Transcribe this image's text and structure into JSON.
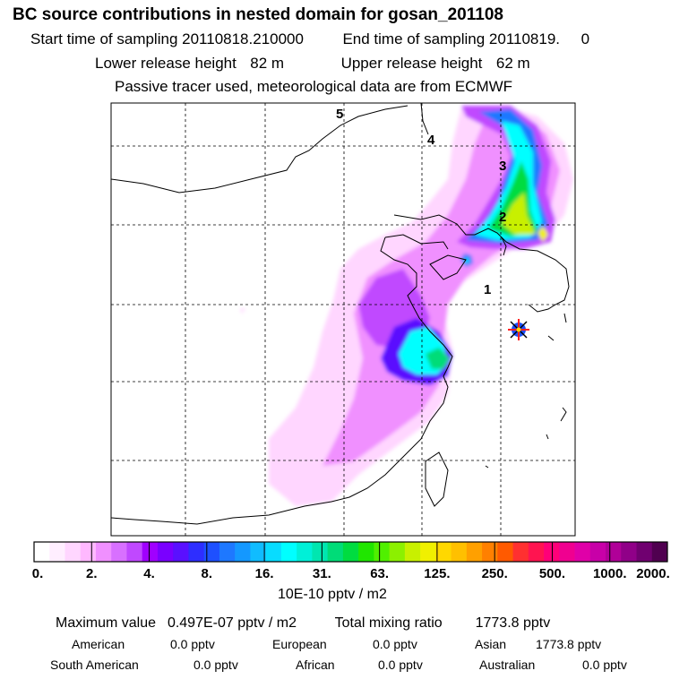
{
  "header": {
    "title": "BC  source contributions in nested domain for gosan_201108",
    "start_label": "Start time of sampling",
    "start_value": "20110818.210000",
    "end_label": "End time of sampling",
    "end_value": "20110819.     0",
    "lower_label": "Lower release height",
    "lower_value": "82 m",
    "upper_label": "Upper release height",
    "upper_value": "62 m",
    "tracer_note": "Passive tracer used, meteorological data are from ECMWF"
  },
  "map": {
    "day_markers": [
      "1",
      "2",
      "3",
      "4",
      "5"
    ],
    "receptor_icon": "receptor-star-icon"
  },
  "colorbar": {
    "tick_labels": [
      "0.",
      "2.",
      "4.",
      "8.",
      "16.",
      "31.",
      "63.",
      "125.",
      "250.",
      "500.",
      "1000.",
      "2000."
    ],
    "colors": [
      "#ffffff",
      "#ffeeff",
      "#ffd6ff",
      "#ffb8ff",
      "#f090ff",
      "#d870ff",
      "#c048ff",
      "#a000ff",
      "#7a00ff",
      "#5a10ff",
      "#2e2eff",
      "#1e50ff",
      "#1e78ff",
      "#1498ff",
      "#10bcff",
      "#08dcff",
      "#00ffff",
      "#00f0d8",
      "#00e6b0",
      "#00dc78",
      "#00dc40",
      "#20e600",
      "#50f000",
      "#8cf000",
      "#c8f000",
      "#f0f000",
      "#ffd800",
      "#ffc000",
      "#ffa000",
      "#ff8000",
      "#ff5a00",
      "#ff3030",
      "#ff1450",
      "#ff0078",
      "#f00090",
      "#e000a8",
      "#c800a8",
      "#b00098",
      "#900088",
      "#700070",
      "#500050"
    ],
    "units": "10E-10 pptv / m2"
  },
  "summary": {
    "max_label": "Maximum value",
    "max_value": "0.497E-07 pptv / m2",
    "total_label": "Total mixing ratio",
    "total_value": "1773.8 pptv",
    "regions": [
      {
        "name": "American",
        "value": "0.0 pptv"
      },
      {
        "name": "European",
        "value": "0.0 pptv"
      },
      {
        "name": "Asian",
        "value": "1773.8 pptv"
      },
      {
        "name": "South American",
        "value": "0.0 pptv"
      },
      {
        "name": "African",
        "value": "0.0 pptv"
      },
      {
        "name": "Australian",
        "value": "0.0 pptv"
      }
    ]
  }
}
